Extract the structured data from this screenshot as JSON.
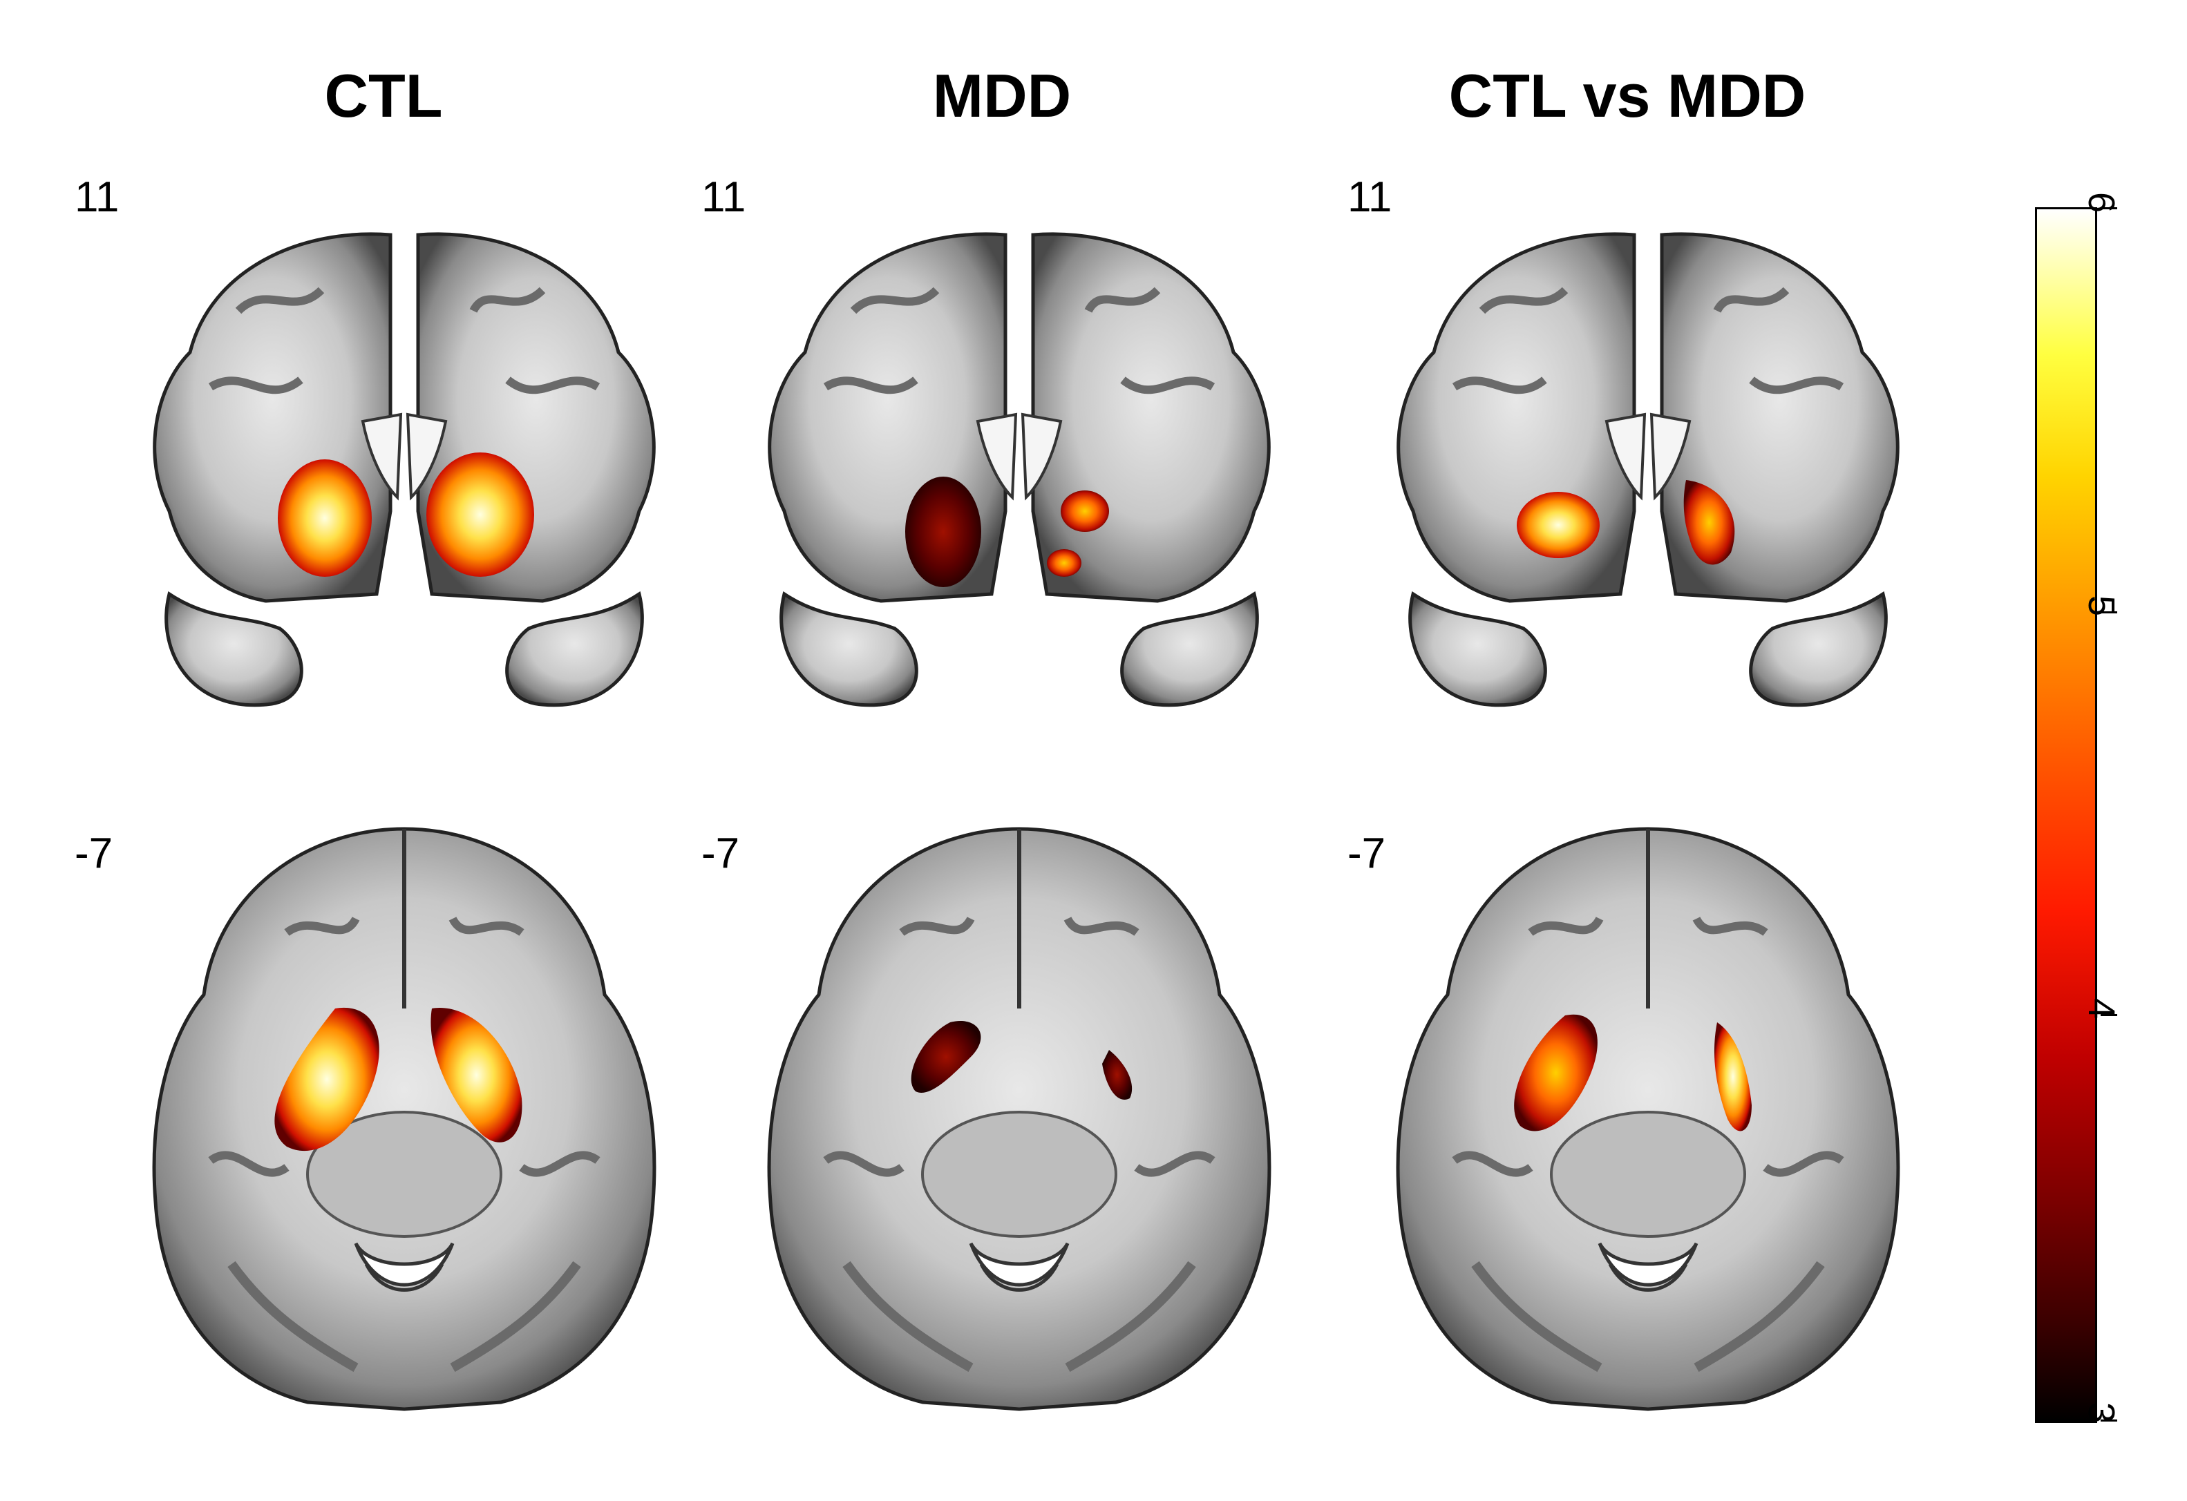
{
  "columns": [
    {
      "title": "CTL"
    },
    {
      "title": "MDD"
    },
    {
      "title": "CTL vs MDD"
    }
  ],
  "rows": [
    {
      "slice": "11",
      "view": "coronal"
    },
    {
      "slice": "-7",
      "view": "axial"
    }
  ],
  "colorbar": {
    "min": 3,
    "max": 6,
    "ticks": [
      "3",
      "4",
      "5",
      "6"
    ],
    "colormap": "hot"
  },
  "colors": {
    "background": "#ffffff",
    "brain_gray": "#9a9a9a",
    "activation_low": "#3a0000",
    "activation_mid": "#ff5a00",
    "activation_high": "#ffffc0"
  }
}
